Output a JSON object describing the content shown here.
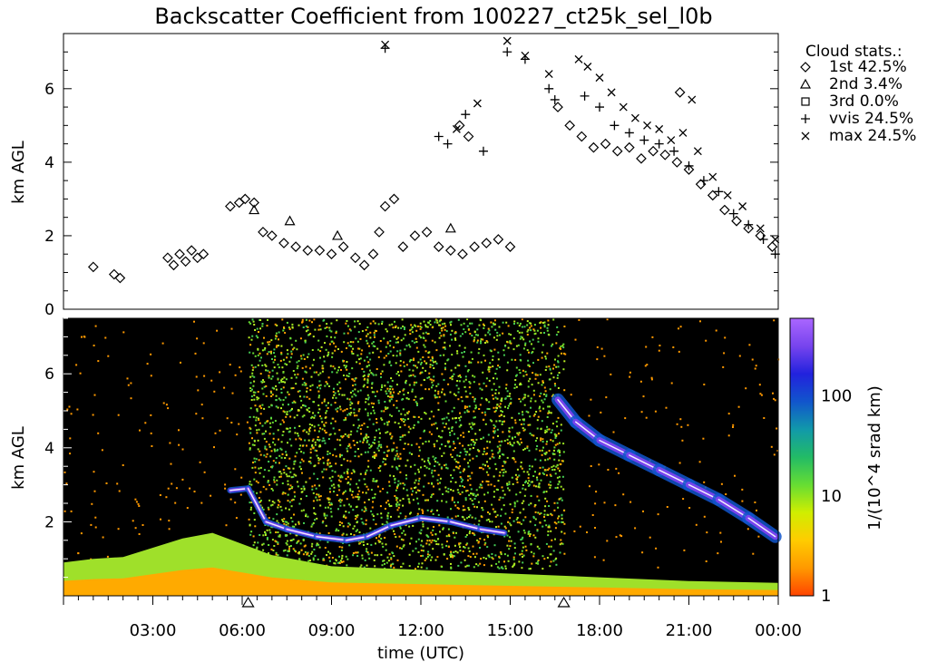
{
  "title": "Backscatter Coefficient from 100227_ct25k_sel_l0b",
  "chart_data": [
    {
      "type": "scatter",
      "ylabel": "km AGL",
      "ylim": [
        0,
        7.5
      ],
      "yticks": [
        0,
        2,
        4,
        6
      ],
      "xlim": [
        0,
        24
      ],
      "legend_title": "Cloud stats.:",
      "legend_position": "right",
      "legend": [
        {
          "symbol": "diamond",
          "name": "1st",
          "value": "42.5%"
        },
        {
          "symbol": "triangle",
          "name": "2nd",
          "value": "3.4%"
        },
        {
          "symbol": "square",
          "name": "3rd",
          "value": "0.0%"
        },
        {
          "symbol": "plus",
          "name": "vvis",
          "value": "24.5%"
        },
        {
          "symbol": "cross",
          "name": "max",
          "value": "24.5%"
        }
      ],
      "series": [
        {
          "name": "1st",
          "symbol": "diamond",
          "points": [
            [
              1.0,
              1.15
            ],
            [
              1.7,
              0.95
            ],
            [
              1.9,
              0.85
            ],
            [
              3.5,
              1.4
            ],
            [
              3.7,
              1.2
            ],
            [
              3.9,
              1.5
            ],
            [
              4.1,
              1.3
            ],
            [
              4.3,
              1.6
            ],
            [
              4.5,
              1.4
            ],
            [
              4.7,
              1.5
            ],
            [
              5.6,
              2.8
            ],
            [
              5.9,
              2.9
            ],
            [
              6.1,
              3.0
            ],
            [
              6.4,
              2.9
            ],
            [
              6.7,
              2.1
            ],
            [
              7.0,
              2.0
            ],
            [
              7.4,
              1.8
            ],
            [
              7.8,
              1.7
            ],
            [
              8.2,
              1.6
            ],
            [
              8.6,
              1.6
            ],
            [
              9.0,
              1.5
            ],
            [
              9.4,
              1.7
            ],
            [
              9.8,
              1.4
            ],
            [
              10.1,
              1.2
            ],
            [
              10.4,
              1.5
            ],
            [
              10.6,
              2.1
            ],
            [
              10.8,
              2.8
            ],
            [
              11.1,
              3.0
            ],
            [
              11.4,
              1.7
            ],
            [
              11.8,
              2.0
            ],
            [
              12.2,
              2.1
            ],
            [
              12.6,
              1.7
            ],
            [
              13.0,
              1.6
            ],
            [
              13.4,
              1.5
            ],
            [
              13.8,
              1.7
            ],
            [
              14.2,
              1.8
            ],
            [
              14.6,
              1.9
            ],
            [
              15.0,
              1.7
            ],
            [
              13.3,
              5.0
            ],
            [
              13.6,
              4.7
            ],
            [
              16.6,
              5.5
            ],
            [
              17.0,
              5.0
            ],
            [
              17.4,
              4.7
            ],
            [
              17.8,
              4.4
            ],
            [
              18.2,
              4.5
            ],
            [
              18.6,
              4.3
            ],
            [
              19.0,
              4.4
            ],
            [
              19.4,
              4.1
            ],
            [
              19.8,
              4.3
            ],
            [
              20.2,
              4.2
            ],
            [
              20.6,
              4.0
            ],
            [
              20.7,
              5.9
            ],
            [
              21.0,
              3.8
            ],
            [
              21.4,
              3.4
            ],
            [
              21.8,
              3.1
            ],
            [
              22.2,
              2.7
            ],
            [
              22.6,
              2.4
            ],
            [
              23.0,
              2.2
            ],
            [
              23.4,
              2.0
            ],
            [
              23.8,
              1.7
            ]
          ]
        },
        {
          "name": "2nd",
          "symbol": "triangle",
          "points": [
            [
              6.4,
              2.7
            ],
            [
              7.6,
              2.4
            ],
            [
              9.2,
              2.0
            ],
            [
              13.0,
              2.2
            ]
          ]
        },
        {
          "name": "3rd",
          "symbol": "square",
          "points": []
        },
        {
          "name": "vvis",
          "symbol": "plus",
          "points": [
            [
              10.8,
              7.1
            ],
            [
              12.6,
              4.7
            ],
            [
              12.9,
              4.5
            ],
            [
              13.5,
              5.3
            ],
            [
              14.1,
              4.3
            ],
            [
              14.9,
              7.0
            ],
            [
              15.5,
              6.8
            ],
            [
              16.3,
              6.0
            ],
            [
              16.5,
              5.7
            ],
            [
              17.5,
              5.8
            ],
            [
              18.0,
              5.5
            ],
            [
              18.5,
              5.0
            ],
            [
              19.0,
              4.8
            ],
            [
              19.5,
              4.6
            ],
            [
              20.0,
              4.5
            ],
            [
              20.5,
              4.3
            ],
            [
              21.0,
              3.9
            ],
            [
              21.5,
              3.5
            ],
            [
              22.0,
              3.2
            ],
            [
              22.5,
              2.6
            ],
            [
              23.0,
              2.3
            ],
            [
              23.5,
              1.9
            ],
            [
              23.9,
              1.5
            ]
          ]
        },
        {
          "name": "max",
          "symbol": "cross",
          "points": [
            [
              10.8,
              7.2
            ],
            [
              13.2,
              4.9
            ],
            [
              13.9,
              5.6
            ],
            [
              14.9,
              7.3
            ],
            [
              15.5,
              6.9
            ],
            [
              16.3,
              6.4
            ],
            [
              17.3,
              6.8
            ],
            [
              17.6,
              6.6
            ],
            [
              18.0,
              6.3
            ],
            [
              18.4,
              5.9
            ],
            [
              18.8,
              5.5
            ],
            [
              19.2,
              5.2
            ],
            [
              19.6,
              5.0
            ],
            [
              20.0,
              4.9
            ],
            [
              20.4,
              4.6
            ],
            [
              20.8,
              4.8
            ],
            [
              21.1,
              5.7
            ],
            [
              21.3,
              4.3
            ],
            [
              21.8,
              3.6
            ],
            [
              22.3,
              3.1
            ],
            [
              22.8,
              2.8
            ],
            [
              23.4,
              2.2
            ],
            [
              23.9,
              1.9
            ]
          ]
        }
      ]
    },
    {
      "type": "heatmap",
      "ylabel": "km AGL",
      "ylim": [
        0,
        7.5
      ],
      "yticks": [
        2,
        4,
        6
      ],
      "xlabel": "time (UTC)",
      "xlim": [
        0,
        24
      ],
      "xticks": [
        3,
        6,
        9,
        12,
        15,
        18,
        21,
        24
      ],
      "xtick_labels": [
        "03:00",
        "06:00",
        "09:00",
        "12:00",
        "15:00",
        "18:00",
        "21:00",
        "00:00"
      ],
      "colorbar": {
        "label": "1/(10^4 srad km)",
        "scale": "log",
        "range": [
          1,
          600
        ],
        "tick_values": [
          1,
          10,
          100
        ],
        "tick_labels": [
          "1",
          "10",
          "100"
        ],
        "colors": [
          "#ff4400",
          "#ff9900",
          "#ffcc00",
          "#d0ee00",
          "#66dd33",
          "#22bb66",
          "#1199aa",
          "#1155cc",
          "#2222dd",
          "#7744ee",
          "#aa66ff"
        ]
      },
      "gap_markers_x": [
        6.2,
        16.8
      ],
      "noise_region": [
        6.2,
        16.8
      ],
      "boundary_layer": [
        [
          0,
          0.9
        ],
        [
          1.0,
          1.0
        ],
        [
          2.0,
          1.05
        ],
        [
          3.0,
          1.3
        ],
        [
          4.0,
          1.55
        ],
        [
          5.0,
          1.7
        ],
        [
          6.0,
          1.4
        ],
        [
          7.0,
          1.1
        ],
        [
          9.0,
          0.8
        ],
        [
          12.0,
          0.7
        ],
        [
          15.0,
          0.6
        ],
        [
          18.0,
          0.5
        ],
        [
          21.0,
          0.4
        ],
        [
          24.0,
          0.35
        ]
      ],
      "cloud_layer": [
        [
          5.6,
          2.85
        ],
        [
          6.2,
          2.9
        ],
        [
          6.8,
          2.0
        ],
        [
          7.5,
          1.8
        ],
        [
          8.5,
          1.6
        ],
        [
          9.5,
          1.5
        ],
        [
          10.2,
          1.6
        ],
        [
          11.0,
          1.9
        ],
        [
          12.0,
          2.1
        ],
        [
          13.0,
          2.0
        ],
        [
          14.0,
          1.8
        ],
        [
          14.8,
          1.7
        ],
        [
          16.6,
          5.3
        ],
        [
          17.2,
          4.7
        ],
        [
          18.0,
          4.2
        ],
        [
          19.0,
          3.8
        ],
        [
          20.0,
          3.4
        ],
        [
          21.0,
          3.0
        ],
        [
          22.0,
          2.6
        ],
        [
          23.0,
          2.1
        ],
        [
          23.9,
          1.6
        ]
      ]
    }
  ]
}
